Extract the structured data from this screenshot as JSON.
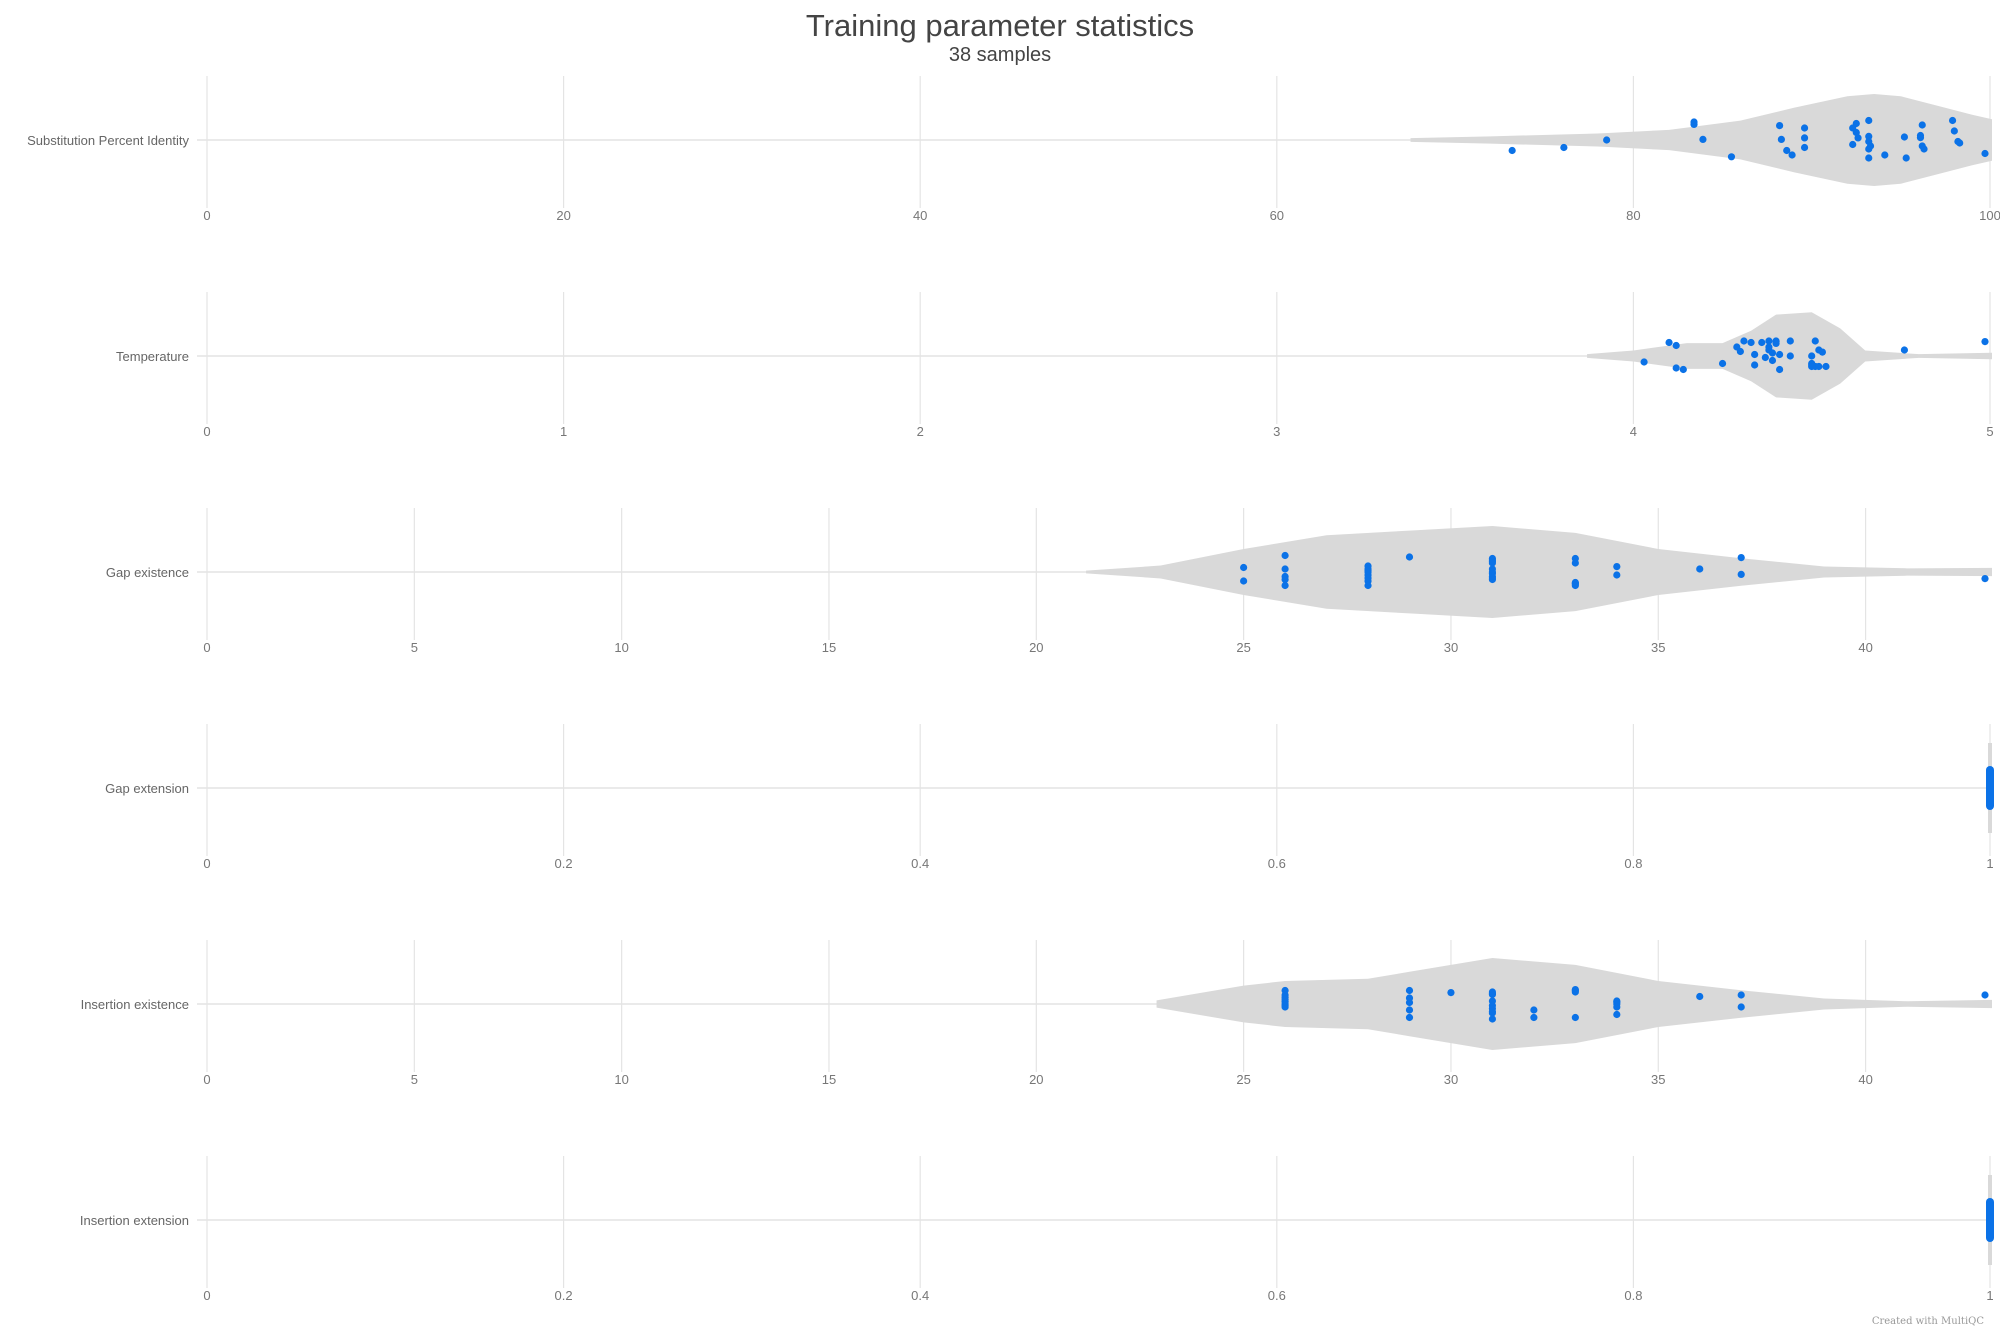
{
  "header": {
    "title": "Training parameter statistics",
    "subtitle": "38 samples"
  },
  "footer": {
    "credit": "Created with MultiQC"
  },
  "colors": {
    "point": "#0b72e7",
    "violin": "#d9d9d9",
    "grid": "#e4e4e4",
    "text": "#444444",
    "axis_text": "#777777"
  },
  "chart_data": {
    "type": "violin",
    "title": "Training parameter statistics",
    "subtitle": "38 samples",
    "n_samples": 38,
    "panels": [
      {
        "label": "Substitution Percent Identity",
        "xlim": [
          0,
          100
        ],
        "ticks": [
          0,
          20,
          40,
          60,
          80,
          100
        ],
        "tick_labels": [
          "0",
          "20",
          "40",
          "60",
          "80",
          "100"
        ],
        "violin_range": [
          67.5,
          100.5
        ],
        "violin_profile": [
          [
            67.5,
            0.04
          ],
          [
            72,
            0.08
          ],
          [
            78,
            0.14
          ],
          [
            82,
            0.22
          ],
          [
            86,
            0.42
          ],
          [
            89,
            0.7
          ],
          [
            92,
            0.95
          ],
          [
            93.5,
            1.0
          ],
          [
            95,
            0.95
          ],
          [
            97,
            0.75
          ],
          [
            99,
            0.55
          ],
          [
            100.5,
            0.45
          ]
        ],
        "points": [
          73.2,
          76.1,
          78.5,
          83.4,
          83.4,
          83.9,
          85.5,
          88.2,
          88.3,
          88.6,
          88.9,
          89.6,
          89.6,
          89.6,
          92.3,
          92.5,
          92.6,
          92.5,
          93.2,
          93.2,
          93.2,
          93.2,
          93.2,
          93.3,
          94.1,
          95.2,
          95.3,
          96.1,
          96.1,
          96.2,
          96.3,
          96.2,
          97.9,
          98.2,
          98.3,
          99.8,
          98.0,
          92.3
        ],
        "jitter": [
          -0.35,
          -0.25,
          0.0,
          0.6,
          0.52,
          0.02,
          -0.56,
          0.48,
          0.02,
          -0.35,
          -0.5,
          0.4,
          0.07,
          -0.25,
          0.4,
          0.55,
          0.07,
          0.25,
          0.65,
          0.12,
          -0.05,
          -0.3,
          -0.6,
          -0.2,
          -0.5,
          0.1,
          -0.6,
          0.15,
          0.08,
          -0.2,
          -0.3,
          0.5,
          0.65,
          -0.05,
          -0.1,
          -0.45,
          0.3,
          -0.15
        ]
      },
      {
        "label": "Temperature",
        "xlim": [
          0,
          5
        ],
        "ticks": [
          0,
          1,
          2,
          3,
          4,
          5
        ],
        "tick_labels": [
          "0",
          "1",
          "2",
          "3",
          "4",
          "5"
        ],
        "violin_range": [
          3.87,
          5.05
        ],
        "violin_profile": [
          [
            3.87,
            0.04
          ],
          [
            4.0,
            0.12
          ],
          [
            4.15,
            0.28
          ],
          [
            4.25,
            0.28
          ],
          [
            4.33,
            0.55
          ],
          [
            4.4,
            0.9
          ],
          [
            4.5,
            0.95
          ],
          [
            4.58,
            0.6
          ],
          [
            4.65,
            0.12
          ],
          [
            4.8,
            0.04
          ],
          [
            5.05,
            0.07
          ]
        ],
        "points": [
          4.03,
          4.1,
          4.12,
          4.12,
          4.14,
          4.25,
          4.29,
          4.3,
          4.31,
          4.33,
          4.34,
          4.34,
          4.36,
          4.37,
          4.38,
          4.38,
          4.38,
          4.39,
          4.39,
          4.4,
          4.4,
          4.4,
          4.41,
          4.41,
          4.44,
          4.44,
          4.5,
          4.5,
          4.5,
          4.5,
          4.51,
          4.51,
          4.52,
          4.52,
          4.53,
          4.54,
          4.76,
          5.01
        ],
        "jitter": [
          -0.2,
          0.45,
          -0.4,
          0.35,
          -0.45,
          -0.25,
          0.3,
          0.15,
          0.5,
          0.45,
          0.05,
          -0.3,
          0.45,
          -0.05,
          0.3,
          0.2,
          0.5,
          0.1,
          -0.15,
          0.5,
          0.48,
          0.42,
          0.05,
          -0.45,
          0.5,
          0.0,
          -0.25,
          0.0,
          -0.3,
          -0.35,
          0.5,
          -0.35,
          0.2,
          -0.35,
          0.13,
          -0.35,
          0.2,
          0.48
        ]
      },
      {
        "label": "Gap existence",
        "xlim": [
          0,
          43
        ],
        "ticks": [
          0,
          5,
          10,
          15,
          20,
          25,
          30,
          35,
          40
        ],
        "tick_labels": [
          "0",
          "5",
          "10",
          "15",
          "20",
          "25",
          "30",
          "35",
          "40"
        ],
        "violin_range": [
          21.2,
          43.2
        ],
        "violin_profile": [
          [
            21.2,
            0.03
          ],
          [
            23,
            0.14
          ],
          [
            25,
            0.5
          ],
          [
            27,
            0.8
          ],
          [
            29,
            0.9
          ],
          [
            31,
            1.0
          ],
          [
            33,
            0.85
          ],
          [
            35,
            0.5
          ],
          [
            37,
            0.3
          ],
          [
            39,
            0.12
          ],
          [
            41,
            0.08
          ],
          [
            43.2,
            0.09
          ]
        ],
        "points": [
          25,
          25,
          26,
          26,
          26,
          26,
          26,
          28,
          28,
          28,
          28,
          28,
          28,
          28,
          29,
          31,
          31,
          31,
          31,
          31,
          31,
          31,
          31,
          31,
          33,
          33,
          33,
          33,
          33,
          33,
          34,
          34,
          36,
          37,
          37,
          43,
          31,
          28
        ],
        "jitter": [
          0.15,
          -0.3,
          0.55,
          0.1,
          -0.15,
          -0.25,
          -0.45,
          0.2,
          0.1,
          0.0,
          -0.1,
          -0.2,
          -0.3,
          -0.45,
          0.5,
          0.45,
          0.4,
          0.35,
          0.1,
          0.0,
          -0.05,
          -0.15,
          -0.2,
          -0.25,
          0.45,
          0.3,
          -0.35,
          -0.4,
          -0.45,
          -0.38,
          0.18,
          -0.1,
          0.1,
          0.48,
          -0.08,
          -0.22,
          0.3,
          0.05
        ]
      },
      {
        "label": "Gap extension",
        "xlim": [
          0,
          1
        ],
        "ticks": [
          0,
          0.2,
          0.4,
          0.6,
          0.8,
          1
        ],
        "tick_labels": [
          "0",
          "0.2",
          "0.4",
          "0.6",
          "0.8",
          "1"
        ],
        "violin_range": [
          0.999,
          1.0
        ],
        "violin_profile": [],
        "points": [
          1,
          1,
          1,
          1,
          1,
          1,
          1,
          1,
          1,
          1,
          1,
          1,
          1,
          1,
          1,
          1,
          1,
          1,
          1,
          1,
          1,
          1,
          1,
          1,
          1,
          1,
          1,
          1,
          1,
          1,
          1,
          1,
          1,
          1,
          1,
          1,
          1,
          1
        ],
        "jitter": []
      },
      {
        "label": "Insertion existence",
        "xlim": [
          0,
          43
        ],
        "ticks": [
          0,
          5,
          10,
          15,
          20,
          25,
          30,
          35,
          40
        ],
        "tick_labels": [
          "0",
          "5",
          "10",
          "15",
          "20",
          "25",
          "30",
          "35",
          "40"
        ],
        "violin_range": [
          22.9,
          43.2
        ],
        "violin_profile": [
          [
            22.9,
            0.08
          ],
          [
            25,
            0.4
          ],
          [
            26,
            0.5
          ],
          [
            28,
            0.55
          ],
          [
            29,
            0.7
          ],
          [
            31,
            1.0
          ],
          [
            33,
            0.85
          ],
          [
            35,
            0.5
          ],
          [
            37,
            0.3
          ],
          [
            39,
            0.12
          ],
          [
            41,
            0.06
          ],
          [
            43.2,
            0.09
          ]
        ],
        "points": [
          26,
          26,
          26,
          26,
          26,
          26,
          26,
          29,
          29,
          29,
          29,
          30,
          31,
          31,
          31,
          31,
          31,
          31,
          31,
          32,
          32,
          33,
          33,
          33,
          34,
          34,
          34,
          34,
          36,
          37,
          37,
          43,
          26,
          29,
          31,
          34,
          31,
          33
        ],
        "jitter": [
          0.45,
          0.3,
          0.22,
          0.15,
          0.0,
          -0.05,
          -0.1,
          0.45,
          0.05,
          -0.2,
          -0.45,
          0.38,
          0.4,
          0.32,
          0.1,
          -0.05,
          -0.15,
          -0.3,
          -0.5,
          -0.2,
          -0.45,
          0.48,
          0.4,
          -0.45,
          0.1,
          0.0,
          -0.1,
          -0.35,
          0.25,
          0.3,
          -0.1,
          0.3,
          0.08,
          0.2,
          0.35,
          0.06,
          -0.25,
          0.44
        ]
      },
      {
        "label": "Insertion extension",
        "xlim": [
          0,
          1
        ],
        "ticks": [
          0,
          0.2,
          0.4,
          0.6,
          0.8,
          1
        ],
        "tick_labels": [
          "0",
          "0.2",
          "0.4",
          "0.6",
          "0.8",
          "1"
        ],
        "violin_range": [
          0.999,
          1.0
        ],
        "violin_profile": [],
        "points": [
          1,
          1,
          1,
          1,
          1,
          1,
          1,
          1,
          1,
          1,
          1,
          1,
          1,
          1,
          1,
          1,
          1,
          1,
          1,
          1,
          1,
          1,
          1,
          1,
          1,
          1,
          1,
          1,
          1,
          1,
          1,
          1,
          1,
          1,
          1,
          1,
          1,
          1
        ],
        "jitter": []
      }
    ]
  }
}
